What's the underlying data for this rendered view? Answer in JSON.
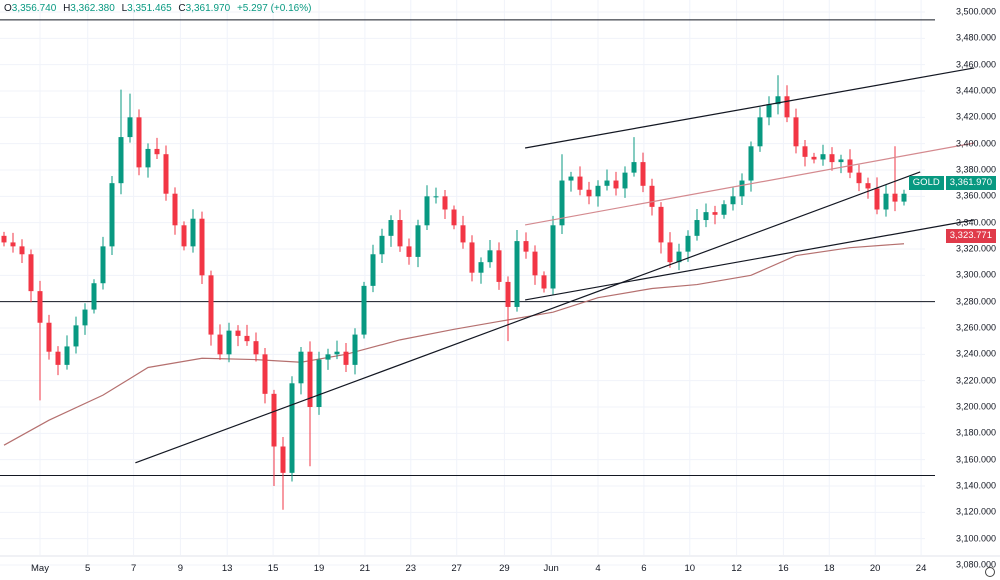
{
  "header": {
    "open_label": "O",
    "open": "3,356.740",
    "high_label": "H",
    "high": "3,362.380",
    "low_label": "L",
    "low": "3,351.465",
    "close_label": "C",
    "close": "3,361.970",
    "change": "+5.297 (+0.16%)"
  },
  "price_tags": {
    "symbol": "GOLD",
    "last_price": "3,361.970",
    "last_price_value": 3361.97,
    "ma_price": "3,323.771",
    "ma_price_value": 3323.771
  },
  "colors": {
    "up": "#089981",
    "down": "#f23645",
    "ma": "#b5706f",
    "channel_pink": "#d48a8f",
    "line": "#131722",
    "grid": "#f0f3fa",
    "ma_tag": "#e03a4a"
  },
  "chart_data": {
    "type": "candlestick",
    "title": "GOLD",
    "ylim": [
      3080,
      3500
    ],
    "y_ticks": [
      "3,080.000",
      "3,100.000",
      "3,120.000",
      "3,140.000",
      "3,160.000",
      "3,180.000",
      "3,200.000",
      "3,220.000",
      "3,240.000",
      "3,260.000",
      "3,280.000",
      "3,300.000",
      "3,320.000",
      "3,340.000",
      "3,360.000",
      "3,380.000",
      "3,400.000",
      "3,420.000",
      "3,440.000",
      "3,460.000",
      "3,480.000",
      "3,500.000"
    ],
    "y_tick_values": [
      3080,
      3100,
      3120,
      3140,
      3160,
      3180,
      3200,
      3220,
      3240,
      3260,
      3280,
      3300,
      3320,
      3340,
      3360,
      3380,
      3400,
      3420,
      3440,
      3460,
      3480,
      3500
    ],
    "x_ticks": [
      {
        "label": "May",
        "index": 4
      },
      {
        "label": "5",
        "index": 9.3
      },
      {
        "label": "7",
        "index": 14.4
      },
      {
        "label": "9",
        "index": 19.6
      },
      {
        "label": "13",
        "index": 24.8
      },
      {
        "label": "15",
        "index": 29.9
      },
      {
        "label": "19",
        "index": 35
      },
      {
        "label": "21",
        "index": 40.1
      },
      {
        "label": "23",
        "index": 45.2
      },
      {
        "label": "27",
        "index": 50.3
      },
      {
        "label": "29",
        "index": 55.6
      },
      {
        "label": "Jun",
        "index": 60.8
      },
      {
        "label": "4",
        "index": 66
      },
      {
        "label": "6",
        "index": 71.1
      },
      {
        "label": "10",
        "index": 76.2
      },
      {
        "label": "12",
        "index": 81.4
      },
      {
        "label": "16",
        "index": 86.6
      },
      {
        "label": "18",
        "index": 91.7
      },
      {
        "label": "20",
        "index": 96.8
      },
      {
        "label": "24",
        "index": 101.9
      }
    ],
    "first_open": 3330,
    "closes": [
      3325,
      3322,
      3316,
      3288,
      3264,
      3242,
      3232,
      3246,
      3262,
      3274,
      3294,
      3322,
      3370,
      3405,
      3420,
      3382,
      3396,
      3392,
      3362,
      3338,
      3322,
      3343,
      3300,
      3255,
      3240,
      3258,
      3254,
      3250,
      3240,
      3210,
      3170,
      3150,
      3218,
      3242,
      3200,
      3236,
      3240,
      3242,
      3232,
      3255,
      3292,
      3316,
      3330,
      3342,
      3322,
      3314,
      3338,
      3360,
      3360,
      3350,
      3338,
      3325,
      3302,
      3310,
      3319,
      3295,
      3276,
      3326,
      3318,
      3300,
      3290,
      3338,
      3372,
      3375,
      3365,
      3360,
      3368,
      3372,
      3366,
      3378,
      3386,
      3368,
      3352,
      3325,
      3310,
      3318,
      3330,
      3342,
      3348,
      3346,
      3354,
      3360,
      3372,
      3398,
      3420,
      3430,
      3436,
      3420,
      3398,
      3390,
      3388,
      3392,
      3386,
      3388,
      3378,
      3370,
      3366,
      3350,
      3362,
      3356,
      3361.97
    ],
    "wick": 6,
    "extremes": [
      {
        "index": 13,
        "high": 3441
      },
      {
        "index": 14,
        "high": 3438
      },
      {
        "index": 4,
        "low": 3205
      },
      {
        "index": 31,
        "low": 3122
      },
      {
        "index": 30,
        "low": 3140
      },
      {
        "index": 34,
        "low": 3155
      },
      {
        "index": 56,
        "low": 3250
      },
      {
        "index": 86,
        "high": 3452
      },
      {
        "index": 99,
        "high": 3398
      },
      {
        "index": 70,
        "high": 3405
      },
      {
        "index": 62,
        "high": 3392
      }
    ],
    "moving_average": {
      "points": [
        [
          0,
          3171
        ],
        [
          5,
          3190
        ],
        [
          11,
          3209
        ],
        [
          16,
          3230
        ],
        [
          22,
          3237
        ],
        [
          28,
          3236
        ],
        [
          33,
          3234
        ],
        [
          38,
          3240
        ],
        [
          44,
          3251
        ],
        [
          50,
          3259
        ],
        [
          55,
          3265
        ],
        [
          61,
          3272
        ],
        [
          66,
          3283
        ],
        [
          72,
          3290
        ],
        [
          77,
          3293
        ],
        [
          83,
          3300
        ],
        [
          88,
          3315
        ],
        [
          94,
          3321
        ],
        [
          100,
          3324
        ]
      ]
    },
    "trendlines": [
      {
        "name": "support-trendline",
        "color": "line",
        "from": [
          14.6,
          3157.6
        ],
        "to": [
          101.8,
          3378.5
        ]
      },
      {
        "name": "channel-upper",
        "color": "line",
        "from": [
          57.9,
          3396.7
        ],
        "to": [
          107.8,
          3457.5
        ]
      },
      {
        "name": "channel-lower",
        "color": "line",
        "from": [
          57.9,
          3281.3
        ],
        "to": [
          107.8,
          3342.1
        ]
      },
      {
        "name": "channel-mid",
        "color": "channel_pink",
        "from": [
          57.9,
          3338.3
        ],
        "to": [
          107.8,
          3400.5
        ]
      }
    ],
    "horizontal_lines": [
      3494,
      3280,
      3148
    ]
  }
}
